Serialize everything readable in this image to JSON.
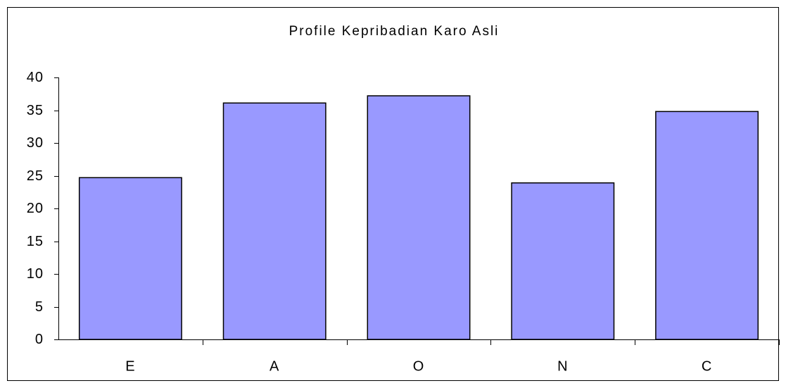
{
  "chart_data": {
    "type": "bar",
    "title": "Profile Kepribadian Karo Asli",
    "categories": [
      "E",
      "A",
      "O",
      "N",
      "C"
    ],
    "values": [
      24.7,
      36.1,
      37.2,
      23.9,
      34.8
    ],
    "color": "#9999ff",
    "ylim": [
      0,
      40
    ],
    "yticks": [
      0,
      5,
      10,
      15,
      20,
      25,
      30,
      35,
      40
    ],
    "grid": false
  }
}
